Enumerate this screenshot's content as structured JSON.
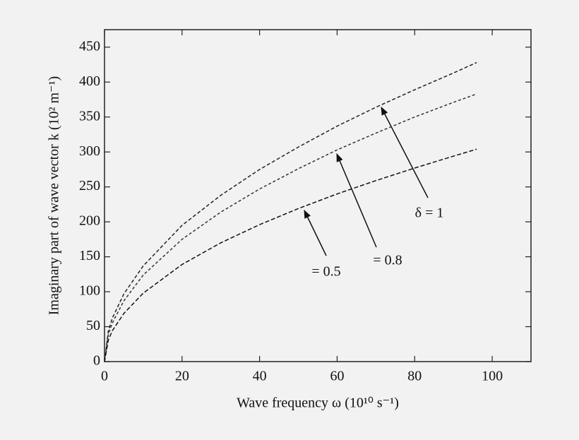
{
  "chart_data": {
    "type": "line",
    "x_label": "Wave frequency ω (10¹⁰ s⁻¹)",
    "y_label": "Imaginary part of wave vector k (10² m⁻¹)",
    "x": [
      0,
      1,
      2,
      5,
      10,
      20,
      30,
      40,
      50,
      60,
      70,
      80,
      90,
      96
    ],
    "series": [
      {
        "color": "#222222",
        "values": [
          0,
          44,
          62,
          97,
          137,
          195,
          238,
          275,
          307,
          337,
          364,
          389,
          413,
          428
        ]
      },
      {
        "color": "#333333",
        "values": [
          0,
          39,
          55,
          87,
          124,
          175,
          214,
          247,
          276,
          303,
          327,
          350,
          371,
          383
        ]
      },
      {
        "color": "#111111",
        "values": [
          0,
          31,
          44,
          69,
          98,
          139,
          170,
          196,
          219,
          240,
          259,
          277,
          294,
          304
        ]
      }
    ],
    "annotations": [
      "δ = 1",
      "= 0.8",
      "= 0.5"
    ],
    "xlim": [
      0,
      110
    ],
    "xticks": [
      0,
      20,
      40,
      60,
      80,
      100
    ],
    "ylim": [
      0,
      475
    ],
    "yticks": [
      0,
      50,
      100,
      150,
      200,
      250,
      300,
      350,
      400,
      450
    ],
    "grid": false
  }
}
